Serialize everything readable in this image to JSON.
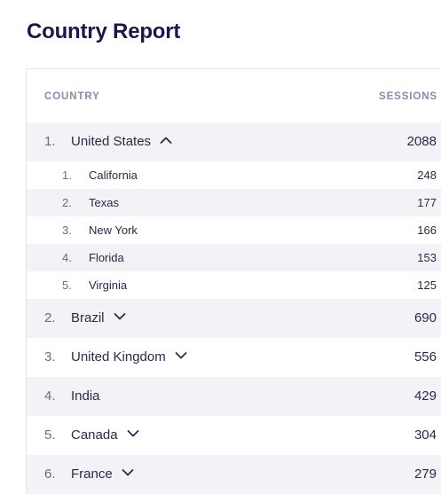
{
  "page": {
    "title": "Country Report"
  },
  "table": {
    "headers": {
      "country": "COUNTRY",
      "sessions": "SESSIONS"
    },
    "expanded_country": {
      "rank": "1.",
      "name": "United States",
      "sessions": "2088",
      "chevron": "chevron-up-icon",
      "regions": [
        {
          "rank": "1.",
          "name": "California",
          "sessions": "248"
        },
        {
          "rank": "2.",
          "name": "Texas",
          "sessions": "177"
        },
        {
          "rank": "3.",
          "name": "New York",
          "sessions": "166"
        },
        {
          "rank": "4.",
          "name": "Florida",
          "sessions": "153"
        },
        {
          "rank": "5.",
          "name": "Virginia",
          "sessions": "125"
        }
      ]
    },
    "countries": [
      {
        "rank": "2.",
        "name": "Brazil",
        "sessions": "690",
        "chevron": "chevron-down-icon"
      },
      {
        "rank": "3.",
        "name": "United Kingdom",
        "sessions": "556",
        "chevron": "chevron-down-icon"
      },
      {
        "rank": "4.",
        "name": "India",
        "sessions": "429"
      },
      {
        "rank": "5.",
        "name": "Canada",
        "sessions": "304",
        "chevron": "chevron-down-icon"
      },
      {
        "rank": "6.",
        "name": "France",
        "sessions": "279",
        "chevron": "chevron-down-icon"
      }
    ]
  },
  "colors": {
    "title": "#1b1848",
    "header_text": "#8a8aa6",
    "row_shade": "#f2f2f7",
    "text": "#2a2a48",
    "rank_text": "#6a6a88"
  }
}
